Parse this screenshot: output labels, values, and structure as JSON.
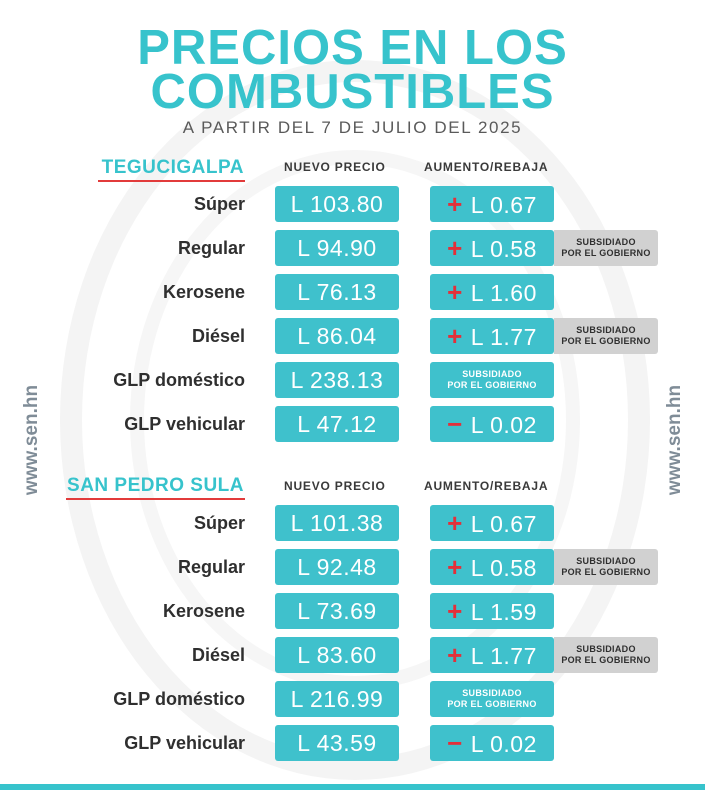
{
  "header": {
    "title_line1": "PRECIOS EN LOS",
    "title_line2": "COMBUSTIBLES",
    "subtitle": "A PARTIR DEL 7 DE JULIO DEL 2025"
  },
  "side_url": "www.sen.hn",
  "column_headers": {
    "price": "NUEVO PRECIO",
    "change": "AUMENTO/REBAJA"
  },
  "subsidy_line1": "SUBSIDIADO",
  "subsidy_line2": "POR EL GOBIERNO",
  "colors": {
    "accent": "#37c3cc",
    "box": "#3fc1cc",
    "sign": "#e3303a",
    "underline": "#e23b3b",
    "badge": "#d1d1d1"
  },
  "sections": [
    {
      "city": "TEGUCIGALPA",
      "rows": [
        {
          "fuel": "Súper",
          "price": "L 103.80",
          "sign": "+",
          "change": "L  0.67"
        },
        {
          "fuel": "Regular",
          "price": "L 94.90",
          "sign": "+",
          "change": "L 0.58"
        },
        {
          "fuel": "Kerosene",
          "price": "L 76.13",
          "sign": "+",
          "change": "L 1.60"
        },
        {
          "fuel": "Diésel",
          "price": "L 86.04",
          "sign": "+",
          "change": "L 1.77"
        },
        {
          "fuel": "GLP doméstico",
          "price": "L 238.13"
        },
        {
          "fuel": "GLP vehicular",
          "price": "L 47.12",
          "sign": "−",
          "change": "L 0.02"
        }
      ]
    },
    {
      "city": "SAN PEDRO SULA",
      "rows": [
        {
          "fuel": "Súper",
          "price": "L 101.38",
          "sign": "+",
          "change": "L 0.67"
        },
        {
          "fuel": "Regular",
          "price": "L 92.48",
          "sign": "+",
          "change": "L 0.58"
        },
        {
          "fuel": "Kerosene",
          "price": "L 73.69",
          "sign": "+",
          "change": "L 1.59"
        },
        {
          "fuel": "Diésel",
          "price": "L 83.60",
          "sign": "+",
          "change": "L 1.77"
        },
        {
          "fuel": "GLP doméstico",
          "price": "L 216.99"
        },
        {
          "fuel": "GLP vehicular",
          "price": "L 43.59",
          "sign": "−",
          "change": "L 0.02"
        }
      ]
    }
  ]
}
